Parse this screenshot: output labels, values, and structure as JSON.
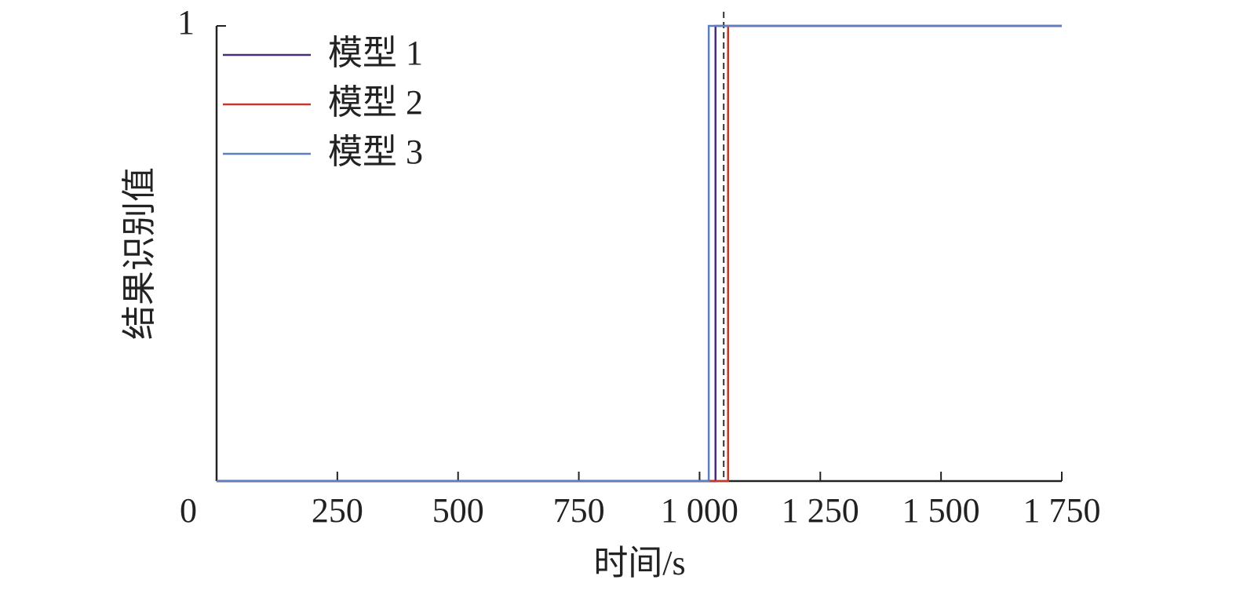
{
  "chart_data": {
    "type": "line",
    "x_label": "时间/s",
    "y_label": "结果识别值",
    "series": [
      {
        "name": "模型 1",
        "color": "#4b2a7a",
        "x": [
          0,
          1033,
          1033,
          1750
        ],
        "values": [
          0,
          0,
          1,
          1
        ]
      },
      {
        "name": "模型 2",
        "color": "#c0392b",
        "x": [
          0,
          1059,
          1059,
          1750
        ],
        "values": [
          0,
          0,
          1,
          1
        ]
      },
      {
        "name": "模型 3",
        "color": "#5b7fc1",
        "x": [
          0,
          1019,
          1019,
          1750
        ],
        "values": [
          0,
          0,
          1,
          1
        ]
      }
    ],
    "reference_x": 1050,
    "xlim": [
      0,
      1750
    ],
    "ylim": [
      0,
      1
    ],
    "xticks": [
      0,
      250,
      500,
      750,
      {
        "value": 1000,
        "label": "1 000"
      },
      {
        "value": 1250,
        "label": "1 250"
      },
      {
        "value": 1500,
        "label": "1 500"
      },
      {
        "value": 1750,
        "label": "1 750"
      }
    ],
    "yticks": [
      1
    ],
    "legend": "upper-left",
    "grid": false
  }
}
